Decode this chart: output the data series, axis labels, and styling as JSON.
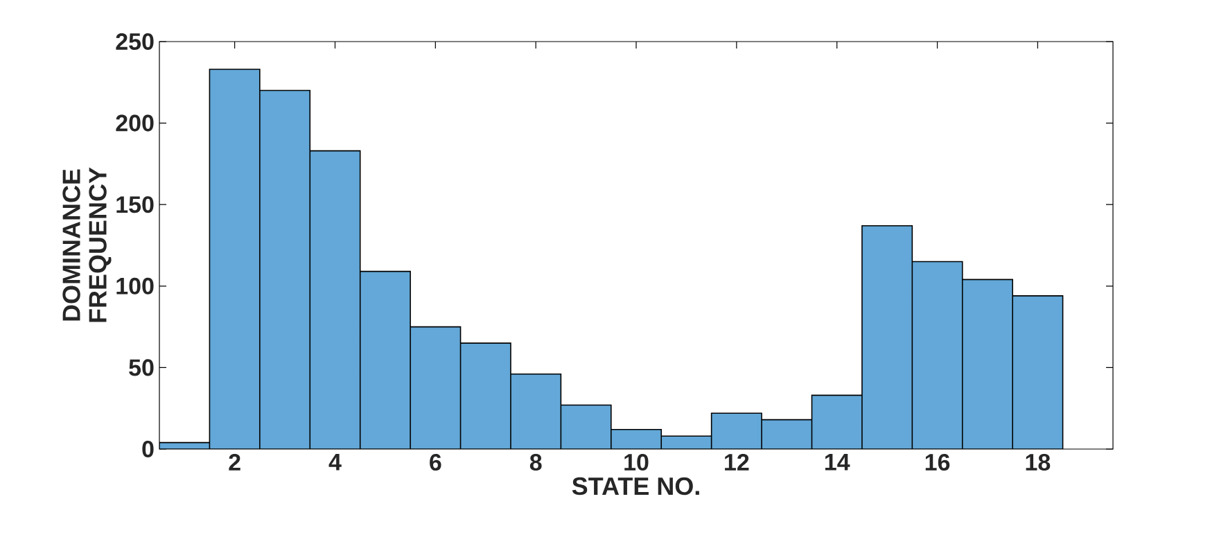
{
  "chart_data": {
    "type": "histogram",
    "xlabel": "STATE NO.",
    "ylabel": "DOMINANCE FREQUENCY",
    "bins": [
      0.5,
      1.5,
      2.5,
      3.5,
      4.5,
      5.5,
      6.5,
      7.5,
      8.5,
      9.5,
      10.5,
      11.5,
      12.5,
      13.5,
      14.5,
      15.5,
      16.5,
      17.5,
      18.5
    ],
    "values": [
      4,
      233,
      220,
      183,
      109,
      75,
      65,
      46,
      27,
      12,
      8,
      22,
      18,
      33,
      137,
      115,
      104,
      94
    ],
    "color": "#63a8d8",
    "xlim": [
      0.5,
      19.5
    ],
    "xticks": [
      2,
      4,
      6,
      8,
      10,
      12,
      14,
      16,
      18
    ],
    "ylim": [
      0,
      250
    ],
    "yticks": [
      0,
      50,
      100,
      150,
      200,
      250
    ],
    "grid": false
  }
}
